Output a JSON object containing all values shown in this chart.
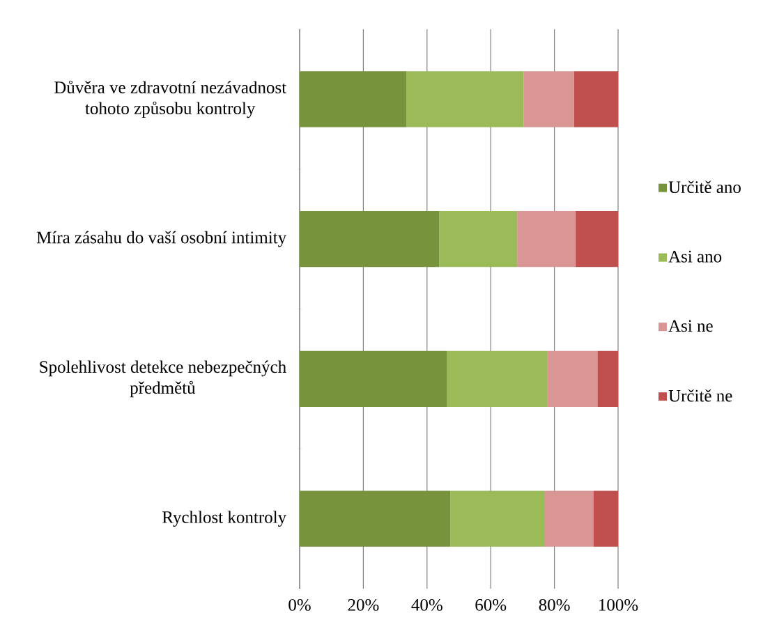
{
  "chart_data": {
    "type": "bar",
    "orientation": "horizontal",
    "stacked": true,
    "categories": [
      "Důvěra ve zdravotní nezávadnost tohoto způsobu kontroly",
      "Míra zásahu do vaší osobní intimity",
      "Spolehlivost detekce nebezpečných předmětů",
      "Rychlost kontroly"
    ],
    "series": [
      {
        "name": "Určitě ano",
        "color": "#77933c",
        "values": [
          33.5,
          43.8,
          46.3,
          47.3
        ]
      },
      {
        "name": "Asi ano",
        "color": "#9bbb59",
        "values": [
          36.8,
          24.5,
          31.4,
          29.5
        ]
      },
      {
        "name": "Asi ne",
        "color": "#d99694",
        "values": [
          15.8,
          18.3,
          15.8,
          15.4
        ]
      },
      {
        "name": "Určitě ne",
        "color": "#c0504d",
        "values": [
          13.9,
          13.4,
          6.5,
          7.8
        ]
      }
    ],
    "xlim": [
      0,
      100
    ],
    "xticks": [
      {
        "value": 0,
        "label": "0%"
      },
      {
        "value": 20,
        "label": "20%"
      },
      {
        "value": 40,
        "label": "40%"
      },
      {
        "value": 60,
        "label": "60%"
      },
      {
        "value": 80,
        "label": "80%"
      },
      {
        "value": 100,
        "label": "100%"
      }
    ],
    "grid": "x",
    "legend": "right"
  }
}
